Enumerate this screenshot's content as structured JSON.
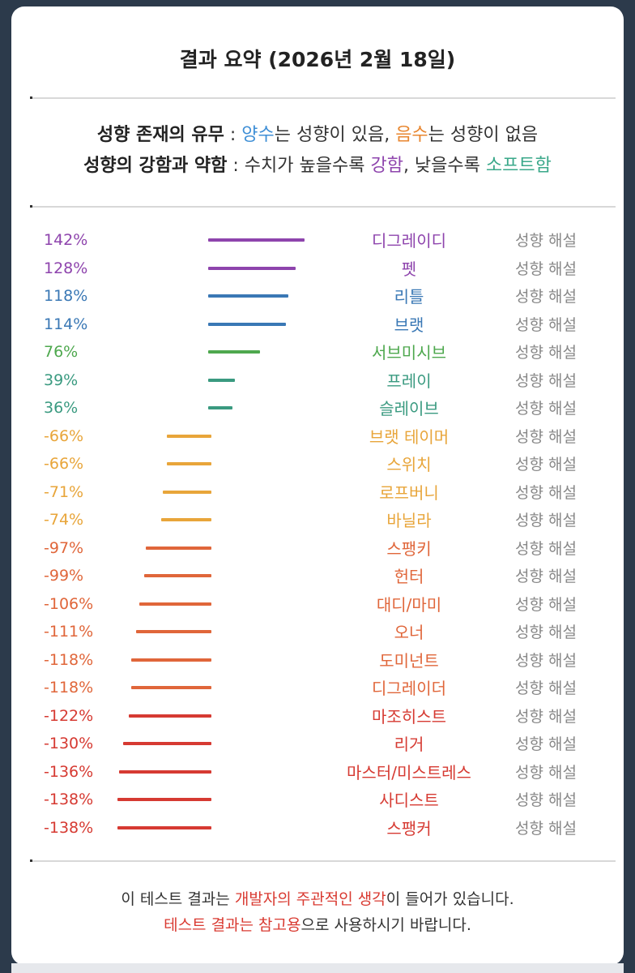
{
  "title": "결과 요약 (2026년 2월 18일)",
  "legend": {
    "line1": {
      "label": "성향 존재의 유무",
      "sep": " : ",
      "positive": "양수",
      "positive_tail": "는 성향이 있음, ",
      "negative": "음수",
      "negative_tail": "는 성향이 없음",
      "positive_color": "#3f8fd6",
      "negative_color": "#e8862f"
    },
    "line2": {
      "label": "성향의 강함과 약함",
      "sep": " : 수치가 높을수록 ",
      "strong": "강함",
      "mid": ", 낮을수록 ",
      "soft": "소프트함",
      "strong_color": "#8e44ad",
      "soft_color": "#3aa88a"
    }
  },
  "explain_label": "성향 해설",
  "rows": [
    {
      "pct": "142%",
      "value": 142,
      "name": "디그레이디",
      "color": "#8e44ad"
    },
    {
      "pct": "128%",
      "value": 128,
      "name": "펫",
      "color": "#8e44ad"
    },
    {
      "pct": "118%",
      "value": 118,
      "name": "리틀",
      "color": "#3a78b5"
    },
    {
      "pct": "114%",
      "value": 114,
      "name": "브랫",
      "color": "#3a78b5"
    },
    {
      "pct": "76%",
      "value": 76,
      "name": "서브미시브",
      "color": "#4ea84e"
    },
    {
      "pct": "39%",
      "value": 39,
      "name": "프레이",
      "color": "#3a9a80"
    },
    {
      "pct": "36%",
      "value": 36,
      "name": "슬레이브",
      "color": "#3a9a80"
    },
    {
      "pct": "-66%",
      "value": -66,
      "name": "브랫 테이머",
      "color": "#e8a53a"
    },
    {
      "pct": "-66%",
      "value": -66,
      "name": "스위치",
      "color": "#e8a53a"
    },
    {
      "pct": "-71%",
      "value": -71,
      "name": "로프버니",
      "color": "#e8a53a"
    },
    {
      "pct": "-74%",
      "value": -74,
      "name": "바닐라",
      "color": "#e8a53a"
    },
    {
      "pct": "-97%",
      "value": -97,
      "name": "스팽키",
      "color": "#e0663a"
    },
    {
      "pct": "-99%",
      "value": -99,
      "name": "헌터",
      "color": "#e0663a"
    },
    {
      "pct": "-106%",
      "value": -106,
      "name": "대디/마미",
      "color": "#e0663a"
    },
    {
      "pct": "-111%",
      "value": -111,
      "name": "오너",
      "color": "#e0663a"
    },
    {
      "pct": "-118%",
      "value": -118,
      "name": "도미넌트",
      "color": "#e0663a"
    },
    {
      "pct": "-118%",
      "value": -118,
      "name": "디그레이더",
      "color": "#e0663a"
    },
    {
      "pct": "-122%",
      "value": -122,
      "name": "마조히스트",
      "color": "#d63a32"
    },
    {
      "pct": "-130%",
      "value": -130,
      "name": "리거",
      "color": "#d63a32"
    },
    {
      "pct": "-136%",
      "value": -136,
      "name": "마스터/미스트레스",
      "color": "#d63a32"
    },
    {
      "pct": "-138%",
      "value": -138,
      "name": "사디스트",
      "color": "#d63a32"
    },
    {
      "pct": "-138%",
      "value": -138,
      "name": "스팽커",
      "color": "#d63a32"
    }
  ],
  "note": {
    "line1_a": "이 테스트 결과는 ",
    "line1_red": "개발자의 주관적인 생각",
    "line1_b": "이 들어가 있습니다.",
    "line2_red": "테스트 결과는 참고용",
    "line2_b": "으로 사용하시기 바랍니다.",
    "accent": "#d93a31"
  }
}
